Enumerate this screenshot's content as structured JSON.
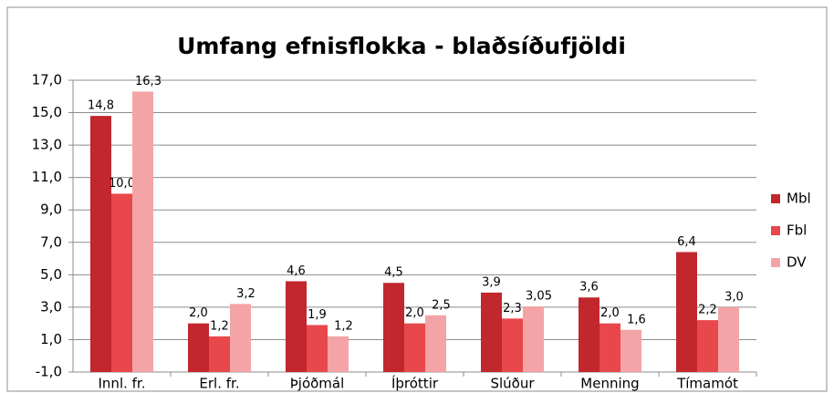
{
  "chart_data": {
    "type": "bar",
    "title": "Umfang efnisflokka - blaðsíðufjöldi",
    "categories": [
      "Innl. fr.",
      "Erl. fr.",
      "Þjóðmál",
      "Íþróttir",
      "Slúður",
      "Menning",
      "Tímamót"
    ],
    "series": [
      {
        "name": "Mbl",
        "color": "#c1272d",
        "values": [
          14.8,
          2.0,
          4.6,
          4.5,
          3.9,
          3.6,
          6.4
        ],
        "value_labels": [
          "14,8",
          "2,0",
          "4,6",
          "4,5",
          "3,9",
          "3,6",
          "6,4"
        ]
      },
      {
        "name": "Fbl",
        "color": "#e8474b",
        "values": [
          10.0,
          1.2,
          1.9,
          2.0,
          2.3,
          2.0,
          2.2
        ],
        "value_labels": [
          "10,0",
          "1,2",
          "1,9",
          "2,0",
          "2,3",
          "2,0",
          "2,2"
        ]
      },
      {
        "name": "DV",
        "color": "#f4a4a6",
        "values": [
          16.3,
          3.2,
          1.2,
          2.5,
          3.05,
          1.6,
          3.0
        ],
        "value_labels": [
          "16,3",
          "3,2",
          "1,2",
          "2,5",
          "3,05",
          "1,6",
          "3,0"
        ]
      }
    ],
    "ylim": [
      -1,
      17
    ],
    "yticks": [
      {
        "value": -1,
        "label": "-1,0"
      },
      {
        "value": 1,
        "label": "1,0"
      },
      {
        "value": 3,
        "label": "3,0"
      },
      {
        "value": 5,
        "label": "5,0"
      },
      {
        "value": 7,
        "label": "7,0"
      },
      {
        "value": 9,
        "label": "9,0"
      },
      {
        "value": 11,
        "label": "11,0"
      },
      {
        "value": 13,
        "label": "13,0"
      },
      {
        "value": 15,
        "label": "15,0"
      },
      {
        "value": 17,
        "label": "17,0"
      }
    ],
    "grid": true,
    "legend": "right"
  }
}
